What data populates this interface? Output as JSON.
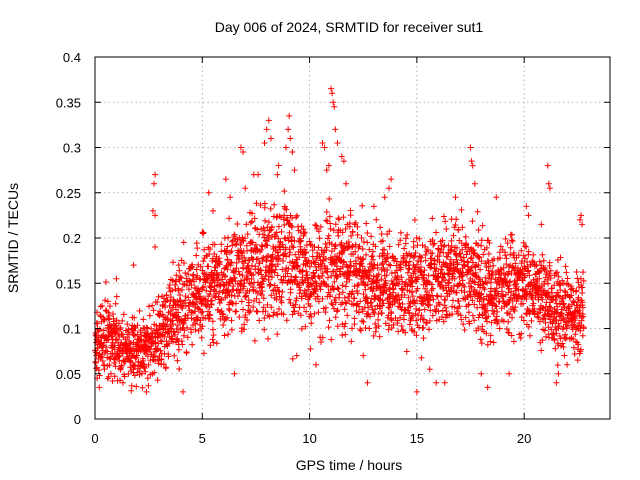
{
  "chart_data": {
    "type": "scatter",
    "title": "Day 006 of 2024, SRMTID for receiver sut1",
    "xlabel": "GPS time / hours",
    "ylabel": "SRMTID / TECUs",
    "xlim": [
      0,
      24
    ],
    "ylim": [
      0,
      0.4
    ],
    "xticks": [
      0,
      5,
      10,
      15,
      20
    ],
    "xtick_labels": [
      "0",
      "5",
      "10",
      "15",
      "20"
    ],
    "yticks": [
      0,
      0.05,
      0.1,
      0.15,
      0.2,
      0.25,
      0.3,
      0.35,
      0.4
    ],
    "ytick_labels": [
      "0",
      "0.05",
      "0.1",
      "0.15",
      "0.2",
      "0.25",
      "0.3",
      "0.35",
      "0.4"
    ],
    "grid": true,
    "marker": "+",
    "color": "#ff0000",
    "series": [
      {
        "name": "SRMTID",
        "trend_x": [
          0,
          0.5,
          1,
          1.5,
          2,
          2.5,
          3,
          3.5,
          4,
          4.5,
          5,
          5.5,
          6,
          6.5,
          7,
          7.5,
          8,
          8.5,
          9,
          9.5,
          10,
          10.5,
          11,
          11.5,
          12,
          12.5,
          13,
          13.5,
          14,
          14.5,
          15,
          15.5,
          16,
          16.5,
          17,
          17.5,
          18,
          18.5,
          19,
          19.5,
          20,
          20.5,
          21,
          21.5,
          22,
          22.5,
          22.8
        ],
        "trend_y": [
          0.08,
          0.09,
          0.085,
          0.08,
          0.075,
          0.08,
          0.09,
          0.11,
          0.12,
          0.13,
          0.14,
          0.145,
          0.15,
          0.155,
          0.16,
          0.17,
          0.17,
          0.175,
          0.17,
          0.165,
          0.16,
          0.165,
          0.17,
          0.165,
          0.16,
          0.155,
          0.15,
          0.15,
          0.14,
          0.145,
          0.15,
          0.15,
          0.155,
          0.16,
          0.16,
          0.16,
          0.15,
          0.14,
          0.14,
          0.15,
          0.15,
          0.14,
          0.13,
          0.125,
          0.12,
          0.12,
          0.12
        ],
        "spread_y": [
          0.03,
          0.035,
          0.035,
          0.03,
          0.03,
          0.03,
          0.035,
          0.04,
          0.04,
          0.045,
          0.045,
          0.045,
          0.05,
          0.05,
          0.05,
          0.055,
          0.055,
          0.055,
          0.055,
          0.05,
          0.05,
          0.05,
          0.055,
          0.05,
          0.05,
          0.05,
          0.045,
          0.045,
          0.045,
          0.045,
          0.045,
          0.045,
          0.045,
          0.045,
          0.045,
          0.045,
          0.045,
          0.045,
          0.045,
          0.045,
          0.045,
          0.04,
          0.04,
          0.04,
          0.04,
          0.04,
          0.04
        ],
        "points": [
          [
            0.1,
            0.045
          ],
          [
            0.2,
            0.035
          ],
          [
            0.6,
            0.13
          ],
          [
            1.0,
            0.155
          ],
          [
            1.3,
            0.04
          ],
          [
            1.8,
            0.17
          ],
          [
            2.4,
            0.03
          ],
          [
            2.8,
            0.27
          ],
          [
            2.75,
            0.26
          ],
          [
            2.7,
            0.23
          ],
          [
            2.8,
            0.225
          ],
          [
            2.8,
            0.19
          ],
          [
            3.9,
            0.17
          ],
          [
            4.1,
            0.03
          ],
          [
            5.3,
            0.25
          ],
          [
            5.5,
            0.23
          ],
          [
            6.1,
            0.265
          ],
          [
            6.3,
            0.245
          ],
          [
            6.5,
            0.05
          ],
          [
            6.8,
            0.3
          ],
          [
            6.9,
            0.295
          ],
          [
            7.0,
            0.255
          ],
          [
            7.4,
            0.27
          ],
          [
            7.6,
            0.27
          ],
          [
            7.9,
            0.305
          ],
          [
            8.0,
            0.32
          ],
          [
            8.1,
            0.33
          ],
          [
            8.2,
            0.31
          ],
          [
            8.5,
            0.27
          ],
          [
            8.9,
            0.3
          ],
          [
            9.0,
            0.32
          ],
          [
            9.05,
            0.335
          ],
          [
            9.1,
            0.31
          ],
          [
            9.2,
            0.295
          ],
          [
            9.3,
            0.275
          ],
          [
            9.4,
            0.07
          ],
          [
            10.3,
            0.06
          ],
          [
            10.6,
            0.305
          ],
          [
            10.7,
            0.3
          ],
          [
            10.8,
            0.275
          ],
          [
            10.9,
            0.28
          ],
          [
            11.0,
            0.365
          ],
          [
            11.05,
            0.36
          ],
          [
            11.1,
            0.35
          ],
          [
            11.15,
            0.345
          ],
          [
            11.2,
            0.32
          ],
          [
            11.3,
            0.305
          ],
          [
            11.5,
            0.29
          ],
          [
            11.6,
            0.285
          ],
          [
            11.7,
            0.26
          ],
          [
            12.1,
            0.215
          ],
          [
            12.5,
            0.07
          ],
          [
            12.7,
            0.04
          ],
          [
            13.0,
            0.235
          ],
          [
            13.5,
            0.245
          ],
          [
            13.7,
            0.255
          ],
          [
            13.8,
            0.265
          ],
          [
            14.4,
            0.11
          ],
          [
            15.0,
            0.03
          ],
          [
            15.6,
            0.055
          ],
          [
            15.9,
            0.04
          ],
          [
            16.3,
            0.04
          ],
          [
            16.8,
            0.245
          ],
          [
            17.5,
            0.3
          ],
          [
            17.55,
            0.285
          ],
          [
            17.6,
            0.28
          ],
          [
            17.7,
            0.26
          ],
          [
            18.0,
            0.05
          ],
          [
            18.3,
            0.035
          ],
          [
            18.7,
            0.245
          ],
          [
            19.3,
            0.05
          ],
          [
            20.1,
            0.235
          ],
          [
            20.2,
            0.225
          ],
          [
            20.8,
            0.215
          ],
          [
            21.1,
            0.28
          ],
          [
            21.15,
            0.26
          ],
          [
            21.2,
            0.255
          ],
          [
            21.5,
            0.04
          ],
          [
            21.6,
            0.05
          ],
          [
            22.0,
            0.06
          ],
          [
            22.5,
            0.065
          ],
          [
            22.6,
            0.22
          ],
          [
            22.65,
            0.225
          ],
          [
            22.7,
            0.215
          ]
        ]
      }
    ]
  }
}
